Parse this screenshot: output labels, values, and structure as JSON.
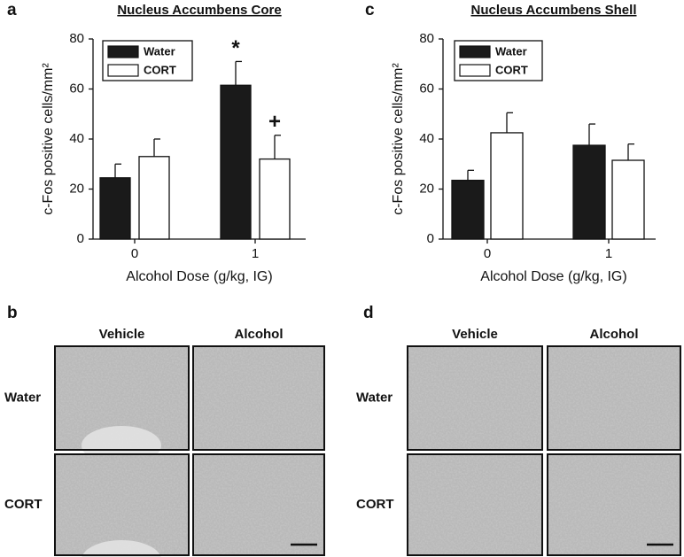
{
  "chart_data": [
    {
      "type": "bar",
      "panel": "a",
      "title": "Nucleus Accumbens Core",
      "xlabel": "Alcohol Dose (g/kg, IG)",
      "ylabel": "c-Fos positive cells/mm²",
      "categories": [
        "0",
        "1"
      ],
      "ylim": [
        0,
        80
      ],
      "yticks": [
        0,
        20,
        40,
        60,
        80
      ],
      "legend": "upper left",
      "series": [
        {
          "name": "Water",
          "color": "#1a1a1a",
          "values": [
            24.5,
            61.5
          ],
          "errors": [
            5.5,
            9.5
          ],
          "annotations": [
            null,
            "*"
          ]
        },
        {
          "name": "CORT",
          "color": "#ffffff",
          "values": [
            33,
            32
          ],
          "errors": [
            7,
            9.5
          ],
          "annotations": [
            null,
            "+"
          ]
        }
      ]
    },
    {
      "type": "bar",
      "panel": "c",
      "title": "Nucleus Accumbens Shell",
      "xlabel": "Alcohol Dose (g/kg, IG)",
      "ylabel": "c-Fos positive cells/mm²",
      "categories": [
        "0",
        "1"
      ],
      "ylim": [
        0,
        80
      ],
      "yticks": [
        0,
        20,
        40,
        60,
        80
      ],
      "legend": "upper left",
      "series": [
        {
          "name": "Water",
          "color": "#1a1a1a",
          "values": [
            23.5,
            37.5
          ],
          "errors": [
            4,
            8.5
          ]
        },
        {
          "name": "CORT",
          "color": "#ffffff",
          "values": [
            42.5,
            31.5
          ],
          "errors": [
            8,
            6.5
          ]
        }
      ]
    }
  ],
  "micrographs": [
    {
      "panel": "b",
      "columns": [
        "Vehicle",
        "Alcohol"
      ],
      "rows": [
        "Water",
        "CORT"
      ]
    },
    {
      "panel": "d",
      "columns": [
        "Vehicle",
        "Alcohol"
      ],
      "rows": [
        "Water",
        "CORT"
      ]
    }
  ]
}
